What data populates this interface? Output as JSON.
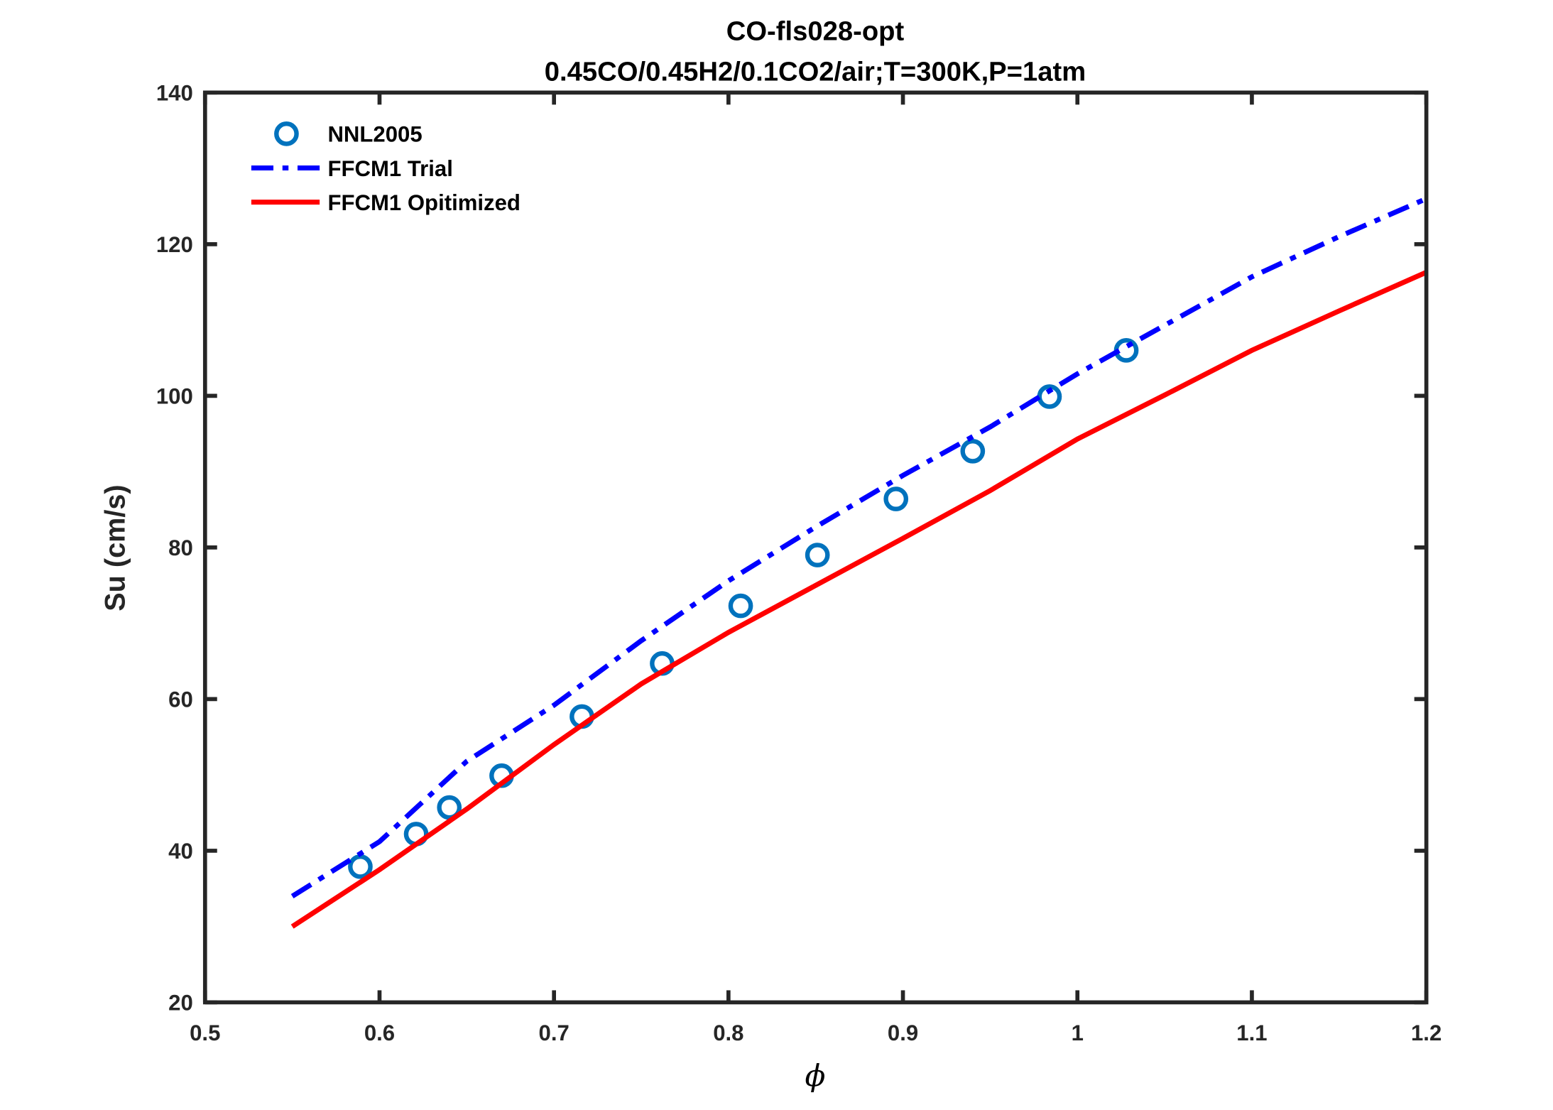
{
  "chart_data": {
    "type": "line",
    "title": "CO-fls028-opt",
    "subtitle": "0.45CO/0.45H2/0.1CO2/air;T=300K,P=1atm",
    "xlabel": "ϕ",
    "ylabel": "Su (cm/s)",
    "xlim": [
      0.5,
      1.2
    ],
    "ylim": [
      20,
      140
    ],
    "xticks": [
      0.5,
      0.6,
      0.7,
      0.8,
      0.9,
      1,
      1.1,
      1.2
    ],
    "xtick_labels": [
      "0.5",
      "0.6",
      "0.7",
      "0.8",
      "0.9",
      "1",
      "1.1",
      "1.2"
    ],
    "yticks": [
      20,
      40,
      60,
      80,
      100,
      120,
      140
    ],
    "ytick_labels": [
      "20",
      "40",
      "60",
      "80",
      "100",
      "120",
      "140"
    ],
    "grid": false,
    "legend_position": "top-left",
    "series": [
      {
        "name": "NNL2005",
        "style": "markers-circle",
        "color": "#0072BD",
        "x": [
          0.589,
          0.621,
          0.64,
          0.67,
          0.716,
          0.762,
          0.807,
          0.851,
          0.896,
          0.94,
          0.984,
          1.028
        ],
        "y": [
          37.9,
          42.2,
          45.7,
          49.9,
          57.7,
          64.7,
          72.3,
          79.0,
          86.4,
          92.7,
          99.9,
          106.0
        ]
      },
      {
        "name": "FFCM1 Trial",
        "style": "dash-dot",
        "color": "#0000FF",
        "x": [
          0.55,
          0.6,
          0.65,
          0.7,
          0.75,
          0.8,
          0.85,
          0.9,
          0.95,
          1.0,
          1.05,
          1.1,
          1.15,
          1.2
        ],
        "y": [
          34.0,
          41.2,
          51.8,
          59.2,
          67.7,
          75.6,
          82.7,
          89.5,
          95.9,
          102.9,
          109.3,
          115.7,
          121.0,
          126.0
        ]
      },
      {
        "name": "FFCM1 Opitimized",
        "style": "solid",
        "color": "#FF0000",
        "x": [
          0.55,
          0.6,
          0.65,
          0.7,
          0.75,
          0.8,
          0.85,
          0.9,
          0.95,
          1.0,
          1.05,
          1.1,
          1.15,
          1.2
        ],
        "y": [
          30.0,
          37.5,
          45.5,
          54.0,
          62.0,
          68.8,
          75.0,
          81.2,
          87.5,
          94.3,
          100.1,
          106.0,
          111.2,
          116.3
        ]
      }
    ]
  }
}
